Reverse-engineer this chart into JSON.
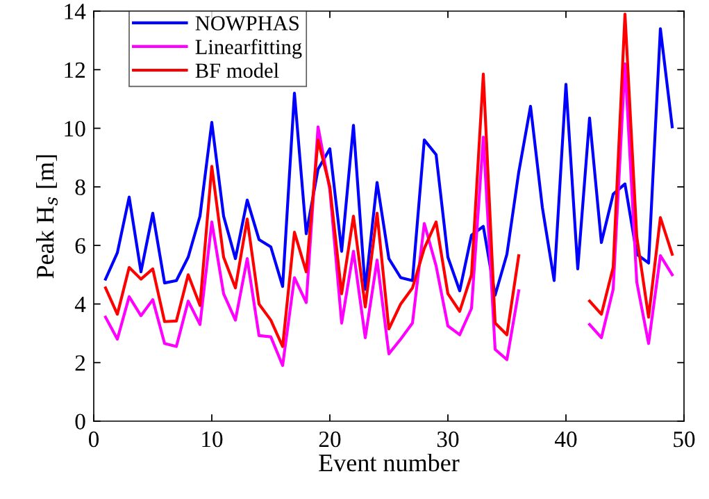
{
  "chart_data": {
    "type": "line",
    "xlabel": "Event number",
    "ylabel": "Peak H$_{s}$ [m]",
    "x": [
      1,
      2,
      3,
      4,
      5,
      6,
      7,
      8,
      9,
      10,
      11,
      12,
      13,
      14,
      15,
      16,
      17,
      18,
      19,
      20,
      21,
      22,
      23,
      24,
      25,
      26,
      27,
      28,
      29,
      30,
      31,
      32,
      33,
      34,
      35,
      36,
      37,
      38,
      39,
      40,
      41,
      42,
      43,
      44,
      45,
      46,
      47,
      48,
      49
    ],
    "series": [
      {
        "name": "NOWPHAS",
        "color": "#0000ff",
        "values": [
          4.85,
          5.75,
          7.65,
          5.1,
          7.1,
          4.72,
          4.8,
          5.6,
          7.0,
          10.2,
          7.0,
          5.55,
          7.55,
          6.2,
          5.95,
          4.6,
          11.2,
          6.4,
          8.6,
          9.3,
          5.8,
          10.1,
          4.5,
          8.15,
          5.55,
          4.9,
          4.8,
          9.6,
          9.1,
          5.6,
          4.45,
          6.35,
          6.65,
          4.3,
          5.7,
          8.5,
          10.75,
          7.3,
          4.8,
          11.5,
          5.2,
          10.35,
          6.1,
          7.75,
          8.1,
          5.7,
          5.4,
          13.4,
          10.05
        ]
      },
      {
        "name": "Linearfitting",
        "color": "#ff00ff",
        "values": [
          3.55,
          2.8,
          4.25,
          3.6,
          4.15,
          2.65,
          2.55,
          4.1,
          3.3,
          6.8,
          4.35,
          3.45,
          5.55,
          2.92,
          2.88,
          1.9,
          4.9,
          4.05,
          10.05,
          7.9,
          3.35,
          5.8,
          2.85,
          5.5,
          2.3,
          2.8,
          3.35,
          6.75,
          5.3,
          3.25,
          2.95,
          3.85,
          9.7,
          2.45,
          2.1,
          4.45,
          null,
          null,
          null,
          null,
          null,
          3.3,
          2.85,
          4.5,
          12.2,
          4.75,
          2.65,
          5.65,
          5.0
        ]
      },
      {
        "name": "BF model",
        "color": "#ff0000",
        "values": [
          4.55,
          3.65,
          5.25,
          4.85,
          5.2,
          3.4,
          3.42,
          5.0,
          3.95,
          8.7,
          5.6,
          4.55,
          6.9,
          4.0,
          3.45,
          2.55,
          6.45,
          5.1,
          9.6,
          8.0,
          4.35,
          7.0,
          3.9,
          7.1,
          3.15,
          4.0,
          4.55,
          5.9,
          6.8,
          4.35,
          3.75,
          5.0,
          11.85,
          3.35,
          2.95,
          5.65,
          null,
          null,
          null,
          null,
          null,
          4.1,
          3.65,
          5.25,
          13.9,
          6.3,
          3.55,
          6.95,
          5.7
        ]
      }
    ],
    "xlim": [
      0,
      50
    ],
    "xticks": [
      0,
      10,
      20,
      30,
      40,
      50
    ],
    "ylim": [
      0,
      14
    ],
    "yticks": [
      0,
      2,
      4,
      6,
      8,
      10,
      12,
      14
    ],
    "grid": false,
    "legend": "top left",
    "marker": "none",
    "line_style": "solid"
  }
}
